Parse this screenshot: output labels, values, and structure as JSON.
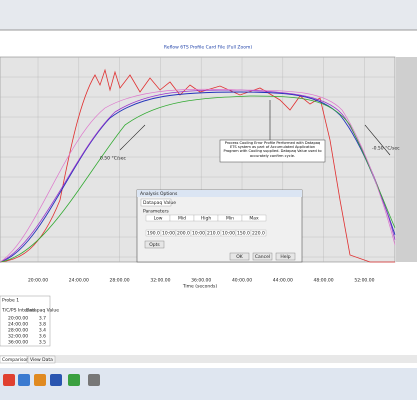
{
  "window": {
    "title": "Reflow 6TS Profile Card File (Full Zoom)"
  },
  "chart": {
    "x_axis_label": "Time (seconds)",
    "x_ticks": [
      "20:00.00",
      "24:00.00",
      "28:00.00",
      "32:00.00",
      "36:00.00",
      "40:00.00",
      "44:00.00",
      "48:00.00",
      "52:00.00"
    ],
    "rise_label": "0.50 °C/sec",
    "fall_label": "-0.50 °C/sec",
    "note": "Process Cooling Error Profile Performed with Datapaq ETS system as part of Accumulated Application Program with Cooling supplied. Datapaq Value used to accurately confirm cycle."
  },
  "dialog": {
    "title": "Analysis Options",
    "tab": "Datapaq Value",
    "group": "Parameters",
    "headers": [
      "Low",
      "Mid",
      "High",
      "Min",
      "Max"
    ],
    "row": [
      "190.0",
      "10:00.00",
      "200.0",
      "10:00.00",
      "210.0",
      "10:00.00",
      "150.0",
      "220.0"
    ],
    "buttons": [
      "Opts",
      "OK",
      "Cancel",
      "Help"
    ]
  },
  "table": {
    "title": "Probe 1",
    "columns": [
      "T/C/PS Interval",
      "Datapaq Value"
    ],
    "rows": [
      [
        "20:00.00",
        "3.7"
      ],
      [
        "24:00.00",
        "3.8"
      ],
      [
        "28:00.00",
        "3.4"
      ],
      [
        "32:00.00",
        "3.6"
      ],
      [
        "36:00.00",
        "3.5"
      ]
    ]
  },
  "tabs": [
    "Comparison",
    "View Data"
  ]
}
